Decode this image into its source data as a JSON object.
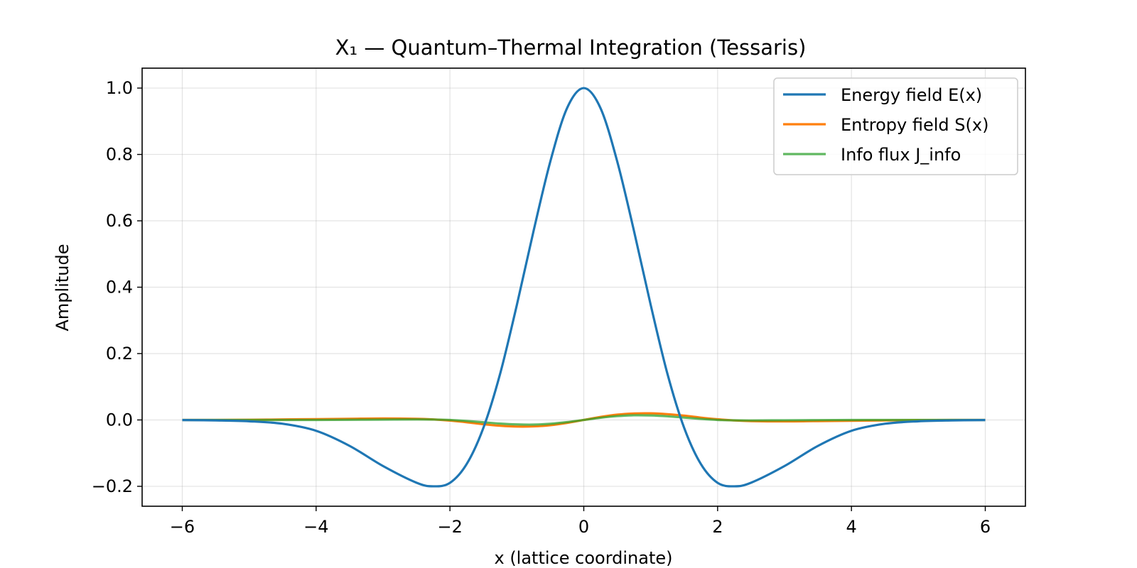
{
  "chart_data": {
    "type": "line",
    "title": "X₁ — Quantum–Thermal Integration (Tessaris)",
    "xlabel": "x (lattice coordinate)",
    "ylabel": "Amplitude",
    "xlim": [
      -6.6,
      6.6
    ],
    "ylim": [
      -0.26,
      1.06
    ],
    "xticks": [
      -6,
      -4,
      -2,
      0,
      2,
      4,
      6
    ],
    "xtick_labels": [
      "−6",
      "−4",
      "−2",
      "0",
      "2",
      "4",
      "6"
    ],
    "yticks": [
      -0.2,
      0.0,
      0.2,
      0.4,
      0.6,
      0.8,
      1.0
    ],
    "ytick_labels": [
      "−0.2",
      "0.0",
      "0.2",
      "0.4",
      "0.6",
      "0.8",
      "1.0"
    ],
    "grid": true,
    "legend_position": "upper right",
    "x": [
      -6.0,
      -5.5,
      -5.0,
      -4.5,
      -4.0,
      -3.5,
      -3.0,
      -2.5,
      -2.25,
      -2.0,
      -1.75,
      -1.5,
      -1.25,
      -1.0,
      -0.75,
      -0.5,
      -0.25,
      0.0,
      0.25,
      0.5,
      0.75,
      1.0,
      1.25,
      1.5,
      1.75,
      2.0,
      2.25,
      2.5,
      3.0,
      3.5,
      4.0,
      4.5,
      5.0,
      5.5,
      6.0
    ],
    "series": [
      {
        "name": "Energy field E(x)",
        "color": "#1f77b4",
        "values": [
          -0.0004,
          -0.0014,
          -0.004,
          -0.0115,
          -0.0327,
          -0.0781,
          -0.1389,
          -0.1891,
          -0.2,
          -0.1895,
          -0.1329,
          -0.0238,
          0.1391,
          0.3466,
          0.5698,
          0.7788,
          0.9396,
          1.0,
          0.9396,
          0.7788,
          0.5698,
          0.3466,
          0.1391,
          -0.0238,
          -0.1329,
          -0.1895,
          -0.2,
          -0.1891,
          -0.1389,
          -0.0781,
          -0.0327,
          -0.0115,
          -0.004,
          -0.0014,
          -0.0004
        ]
      },
      {
        "name": "Entropy field S(x)",
        "color": "#ff7f0e",
        "values": [
          0.0,
          0.0,
          0.0005,
          0.0015,
          0.0025,
          0.0035,
          0.0045,
          0.0035,
          0.0015,
          -0.002,
          -0.007,
          -0.013,
          -0.0175,
          -0.02,
          -0.0195,
          -0.016,
          -0.009,
          0.0,
          0.009,
          0.016,
          0.0195,
          0.02,
          0.0175,
          0.013,
          0.007,
          0.002,
          -0.0015,
          -0.0035,
          -0.0045,
          -0.0035,
          -0.0025,
          -0.0015,
          -0.0005,
          0.0,
          0.0
        ]
      },
      {
        "name": "Info flux J_info",
        "color": "#2ca02c",
        "values": [
          0.0,
          0.0,
          0.0,
          0.0,
          0.0,
          0.0005,
          0.001,
          0.0015,
          0.0012,
          0.0,
          -0.003,
          -0.007,
          -0.011,
          -0.0135,
          -0.014,
          -0.0115,
          -0.0065,
          0.0,
          0.0065,
          0.0115,
          0.014,
          0.0135,
          0.011,
          0.007,
          0.003,
          0.0,
          -0.0012,
          -0.0015,
          -0.001,
          -0.0005,
          0.0,
          0.0,
          0.0,
          0.0,
          0.0
        ]
      }
    ]
  }
}
